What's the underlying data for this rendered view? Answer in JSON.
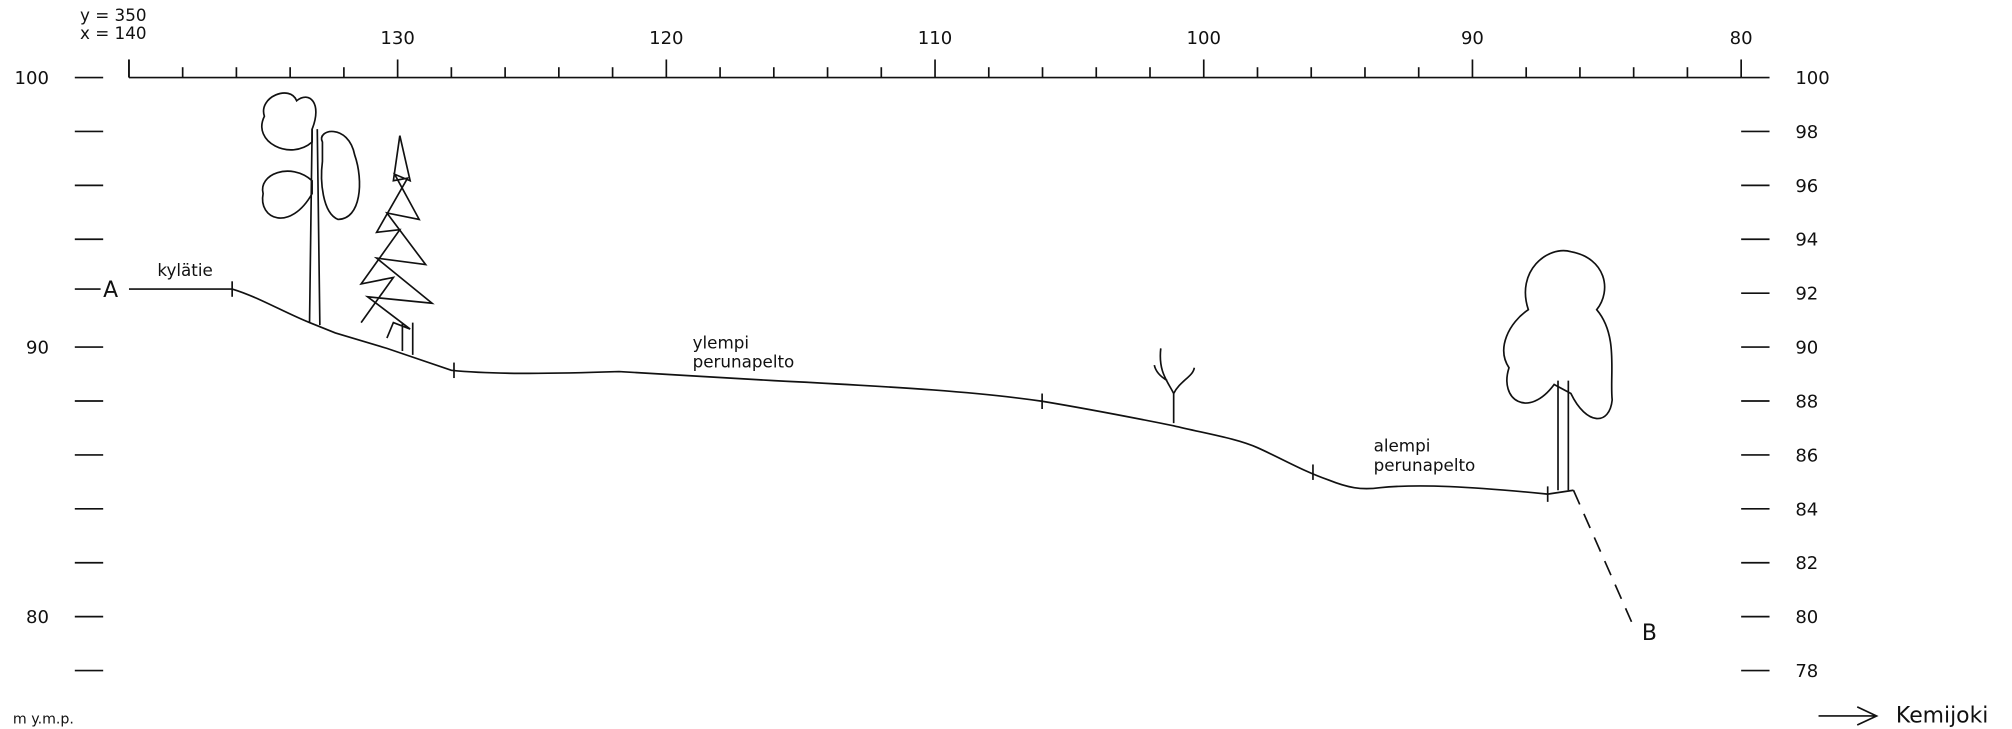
{
  "top_axis": {
    "y_label": "y = 350",
    "x_label": "x = 140",
    "ticks": [
      130,
      120,
      110,
      100,
      90,
      80
    ]
  },
  "left_axis": {
    "labels": [
      100,
      90,
      80
    ],
    "unit": "m y.m.p."
  },
  "right_axis": {
    "labels": [
      100,
      98,
      96,
      94,
      92,
      90,
      88,
      86,
      84,
      82,
      80,
      78
    ]
  },
  "points": {
    "start": "A",
    "end": "B"
  },
  "annotations": {
    "road": "kylätie",
    "upper_field": [
      "ylempi",
      "perunapelto"
    ],
    "lower_field": [
      "alempi",
      "perunapelto"
    ]
  },
  "direction": "Kemijoki"
}
